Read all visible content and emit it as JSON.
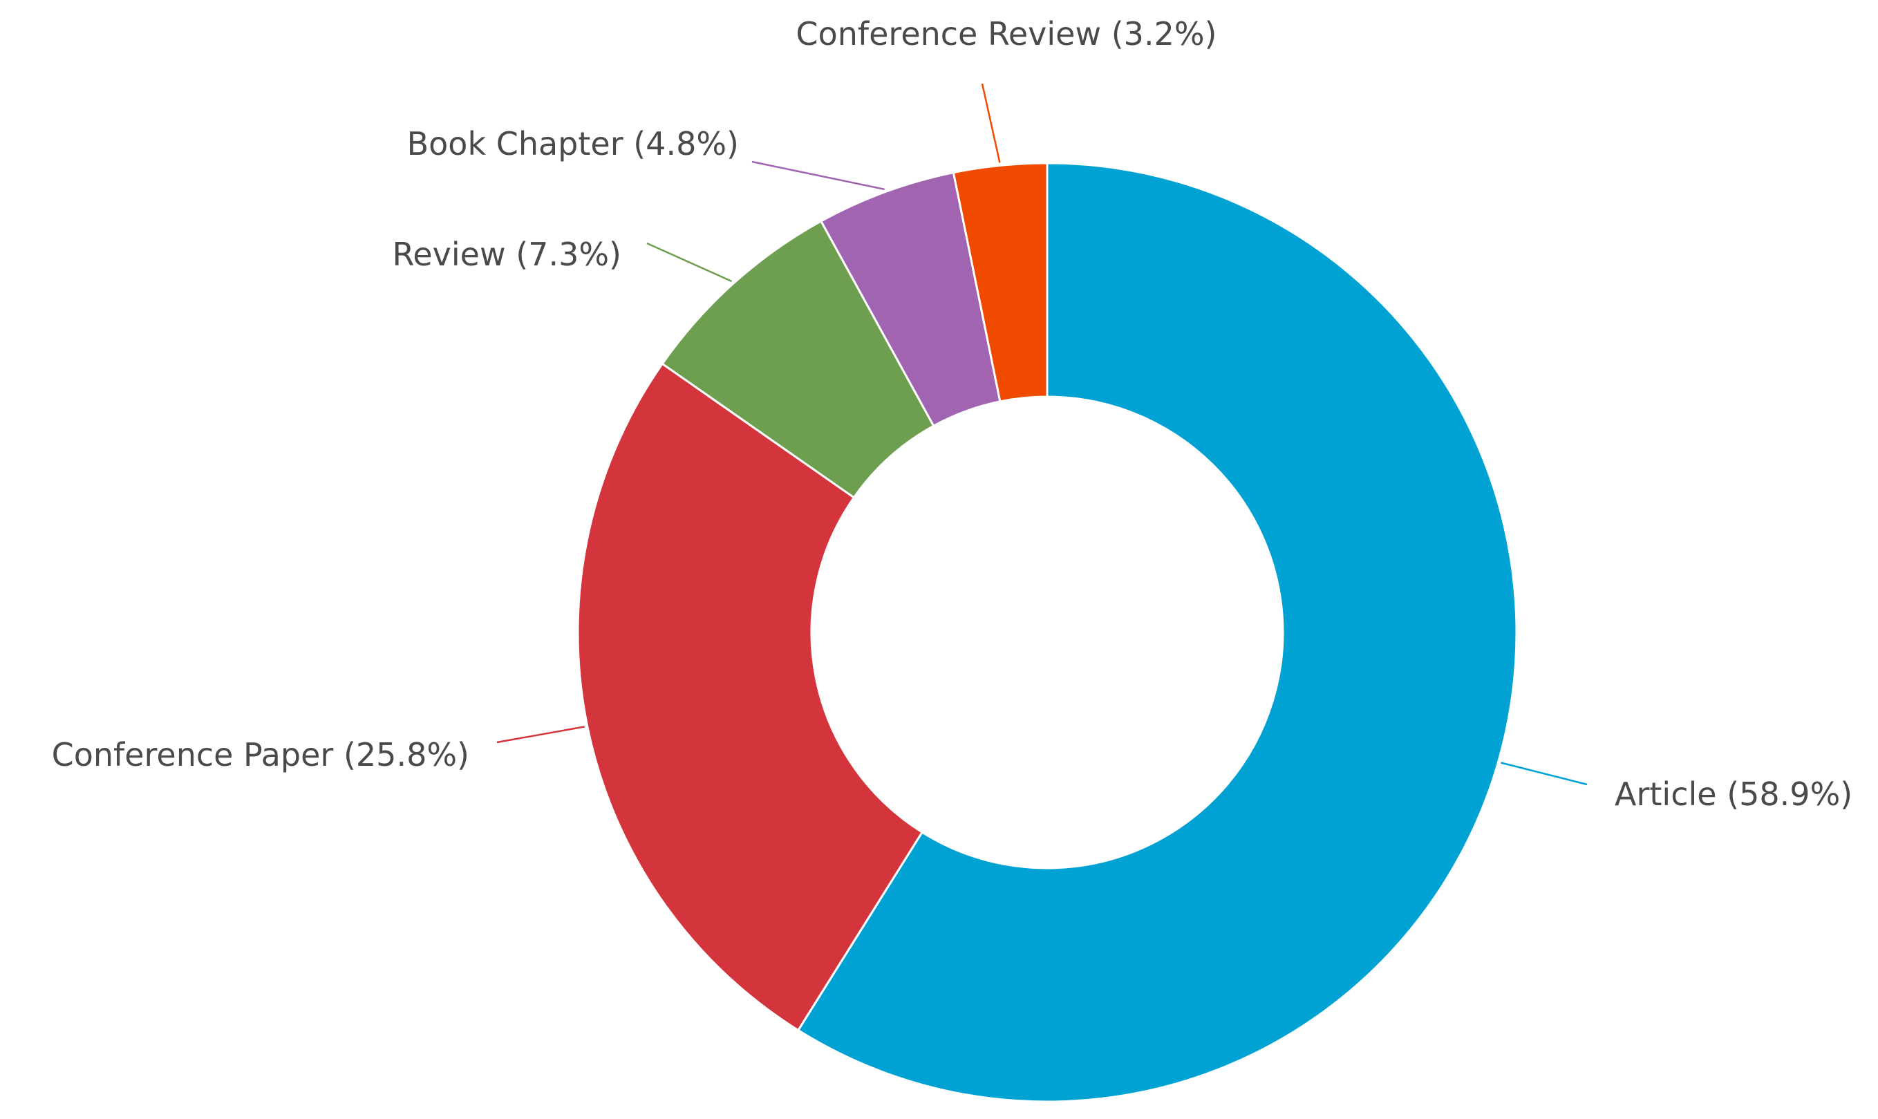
{
  "chart_data": {
    "type": "donut",
    "categories": [
      "Article",
      "Conference Paper",
      "Review",
      "Book Chapter",
      "Conference Review"
    ],
    "values": [
      58.9,
      25.8,
      7.3,
      4.8,
      3.2
    ],
    "value_labels": [
      "(58.9%)",
      "(25.8%)",
      "(7.3%)",
      "(4.8%)",
      "(3.2%)"
    ],
    "colors": [
      "#00a1d3",
      "#d4343b",
      "#6e9e4f",
      "#a064b0",
      "#f04a00"
    ]
  }
}
